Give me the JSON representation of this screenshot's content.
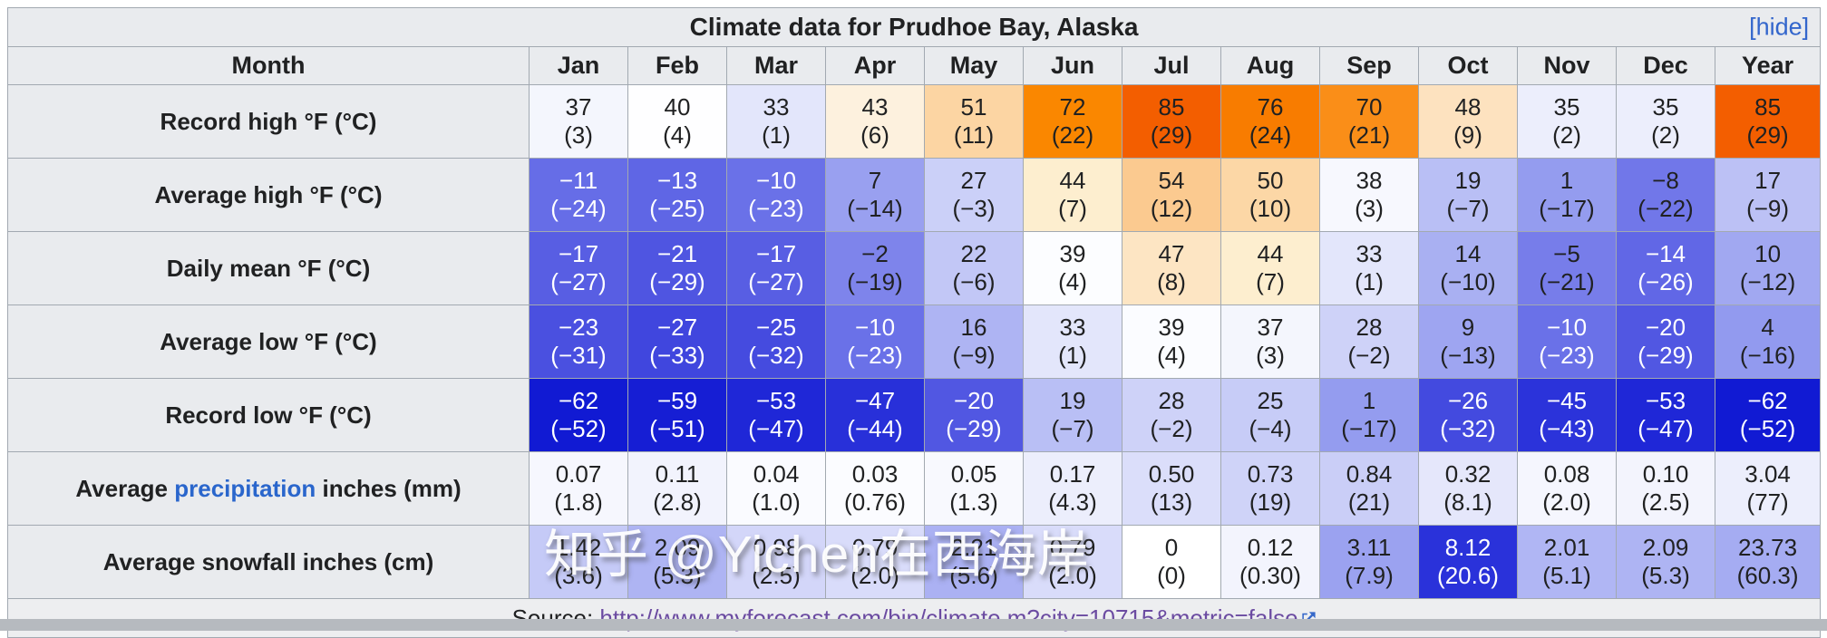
{
  "title": {
    "text": "Climate data for Prudhoe Bay, Alaska",
    "hide_label": "[hide]"
  },
  "header": {
    "month_label": "Month",
    "columns": [
      "Jan",
      "Feb",
      "Mar",
      "Apr",
      "May",
      "Jun",
      "Jul",
      "Aug",
      "Sep",
      "Oct",
      "Nov",
      "Dec",
      "Year"
    ]
  },
  "rows": [
    {
      "label": "Record high °F (°C)",
      "cells": [
        {
          "v": "37",
          "m": "(3)",
          "bg": "#F4F6FD"
        },
        {
          "v": "40",
          "m": "(4)",
          "bg": "#FEFEFF"
        },
        {
          "v": "33",
          "m": "(1)",
          "bg": "#E3E6FB"
        },
        {
          "v": "43",
          "m": "(6)",
          "bg": "#FDF1DE"
        },
        {
          "v": "51",
          "m": "(11)",
          "bg": "#FCD5A3"
        },
        {
          "v": "72",
          "m": "(22)",
          "bg": "#FA8700"
        },
        {
          "v": "85",
          "m": "(29)",
          "bg": "#F35E00"
        },
        {
          "v": "76",
          "m": "(24)",
          "bg": "#F87C00"
        },
        {
          "v": "70",
          "m": "(21)",
          "bg": "#FA8E18"
        },
        {
          "v": "48",
          "m": "(9)",
          "bg": "#FDE2BF"
        },
        {
          "v": "35",
          "m": "(2)",
          "bg": "#ECEEFC"
        },
        {
          "v": "35",
          "m": "(2)",
          "bg": "#ECEEFC"
        },
        {
          "v": "85",
          "m": "(29)",
          "bg": "#F35E00"
        }
      ]
    },
    {
      "label": "Average high °F (°C)",
      "cells": [
        {
          "v": "−11",
          "m": "(−24)",
          "bg": "#666DE7",
          "w": true
        },
        {
          "v": "−13",
          "m": "(−25)",
          "bg": "#5F66E5",
          "w": true
        },
        {
          "v": "−10",
          "m": "(−23)",
          "bg": "#6A71E8",
          "w": true
        },
        {
          "v": "7",
          "m": "(−14)",
          "bg": "#99A0F0"
        },
        {
          "v": "27",
          "m": "(−3)",
          "bg": "#CBD0F8"
        },
        {
          "v": "44",
          "m": "(7)",
          "bg": "#FDEECF"
        },
        {
          "v": "54",
          "m": "(12)",
          "bg": "#FBCA90"
        },
        {
          "v": "50",
          "m": "(10)",
          "bg": "#FCD7A6"
        },
        {
          "v": "38",
          "m": "(3)",
          "bg": "#F7F8FE"
        },
        {
          "v": "19",
          "m": "(−7)",
          "bg": "#B9BFF5"
        },
        {
          "v": "1",
          "m": "(−17)",
          "bg": "#949CEF"
        },
        {
          "v": "−8",
          "m": "(−22)",
          "bg": "#7177E9"
        },
        {
          "v": "17",
          "m": "(−9)",
          "bg": "#BCC1F5"
        }
      ]
    },
    {
      "label": "Daily mean °F (°C)",
      "cells": [
        {
          "v": "−17",
          "m": "(−27)",
          "bg": "#585EE3",
          "w": true
        },
        {
          "v": "−21",
          "m": "(−29)",
          "bg": "#4F55E1",
          "w": true
        },
        {
          "v": "−17",
          "m": "(−27)",
          "bg": "#585EE3",
          "w": true
        },
        {
          "v": "−2",
          "m": "(−19)",
          "bg": "#7E84EB"
        },
        {
          "v": "22",
          "m": "(−6)",
          "bg": "#C2C7F6"
        },
        {
          "v": "39",
          "m": "(4)",
          "bg": "#FCFDFF"
        },
        {
          "v": "47",
          "m": "(8)",
          "bg": "#FDE5C3"
        },
        {
          "v": "44",
          "m": "(7)",
          "bg": "#FDEECF"
        },
        {
          "v": "33",
          "m": "(1)",
          "bg": "#E3E6FB"
        },
        {
          "v": "14",
          "m": "(−10)",
          "bg": "#A9B0F2"
        },
        {
          "v": "−5",
          "m": "(−21)",
          "bg": "#777DEA"
        },
        {
          "v": "−14",
          "m": "(−26)",
          "bg": "#6167E6",
          "w": true
        },
        {
          "v": "10",
          "m": "(−12)",
          "bg": "#A1A8F1"
        }
      ]
    },
    {
      "label": "Average low °F (°C)",
      "cells": [
        {
          "v": "−23",
          "m": "(−31)",
          "bg": "#4A50E0",
          "w": true
        },
        {
          "v": "−27",
          "m": "(−33)",
          "bg": "#4046DE",
          "w": true
        },
        {
          "v": "−25",
          "m": "(−32)",
          "bg": "#454BDF",
          "w": true
        },
        {
          "v": "−10",
          "m": "(−23)",
          "bg": "#6A71E8",
          "w": true
        },
        {
          "v": "16",
          "m": "(−9)",
          "bg": "#AEB4F3"
        },
        {
          "v": "33",
          "m": "(1)",
          "bg": "#E3E6FB"
        },
        {
          "v": "39",
          "m": "(4)",
          "bg": "#FBFCFF"
        },
        {
          "v": "37",
          "m": "(3)",
          "bg": "#F4F6FD"
        },
        {
          "v": "28",
          "m": "(−2)",
          "bg": "#CED2F8"
        },
        {
          "v": "9",
          "m": "(−13)",
          "bg": "#9EA5F1"
        },
        {
          "v": "−10",
          "m": "(−23)",
          "bg": "#6A71E8",
          "w": true
        },
        {
          "v": "−20",
          "m": "(−29)",
          "bg": "#5157E2",
          "w": true
        },
        {
          "v": "4",
          "m": "(−16)",
          "bg": "#929AEF"
        }
      ]
    },
    {
      "label": "Record low °F (°C)",
      "cells": [
        {
          "v": "−62",
          "m": "(−52)",
          "bg": "#111AD3",
          "w": true
        },
        {
          "v": "−59",
          "m": "(−51)",
          "bg": "#161ED4",
          "w": true
        },
        {
          "v": "−53",
          "m": "(−47)",
          "bg": "#1F27D7",
          "w": true
        },
        {
          "v": "−47",
          "m": "(−44)",
          "bg": "#2830D9",
          "w": true
        },
        {
          "v": "−20",
          "m": "(−29)",
          "bg": "#5157E2",
          "w": true
        },
        {
          "v": "19",
          "m": "(−7)",
          "bg": "#B9BFF5"
        },
        {
          "v": "28",
          "m": "(−2)",
          "bg": "#CED2F8"
        },
        {
          "v": "25",
          "m": "(−4)",
          "bg": "#C7CCF7"
        },
        {
          "v": "1",
          "m": "(−17)",
          "bg": "#949CEF"
        },
        {
          "v": "−26",
          "m": "(−32)",
          "bg": "#434ADF",
          "w": true
        },
        {
          "v": "−45",
          "m": "(−43)",
          "bg": "#2B33DA",
          "w": true
        },
        {
          "v": "−53",
          "m": "(−47)",
          "bg": "#1F27D7",
          "w": true
        },
        {
          "v": "−62",
          "m": "(−52)",
          "bg": "#111AD3",
          "w": true
        }
      ]
    },
    {
      "label_pre": "Average ",
      "label_link": "precipitation",
      "label_post": " inches (mm)",
      "cells": [
        {
          "v": "0.07",
          "m": "(1.8)",
          "bg": "#F6F7FE"
        },
        {
          "v": "0.11",
          "m": "(2.8)",
          "bg": "#F2F3FD"
        },
        {
          "v": "0.04",
          "m": "(1.0)",
          "bg": "#FAFBFF"
        },
        {
          "v": "0.03",
          "m": "(0.76)",
          "bg": "#FBFCFF"
        },
        {
          "v": "0.05",
          "m": "(1.3)",
          "bg": "#F8F9FE"
        },
        {
          "v": "0.17",
          "m": "(4.3)",
          "bg": "#ECEEFC"
        },
        {
          "v": "0.50",
          "m": "(13)",
          "bg": "#DBDEFA"
        },
        {
          "v": "0.73",
          "m": "(19)",
          "bg": "#CFD3F8"
        },
        {
          "v": "0.84",
          "m": "(21)",
          "bg": "#CACEF7"
        },
        {
          "v": "0.32",
          "m": "(8.1)",
          "bg": "#E5E7FB"
        },
        {
          "v": "0.08",
          "m": "(2.0)",
          "bg": "#F5F6FE"
        },
        {
          "v": "0.10",
          "m": "(2.5)",
          "bg": "#F3F4FD"
        },
        {
          "v": "3.04",
          "m": "(77)",
          "bg": "#ECEEFC"
        }
      ]
    },
    {
      "label": "Average snowfall inches (cm)",
      "cells": [
        {
          "v": "1.42",
          "m": "(3.6)",
          "bg": "#C5CAF7"
        },
        {
          "v": "2.09",
          "m": "(5.3)",
          "bg": "#AEB4F3"
        },
        {
          "v": "0.98",
          "m": "(2.5)",
          "bg": "#D3D6F9"
        },
        {
          "v": "0.79",
          "m": "(2.0)",
          "bg": "#D9DCFA"
        },
        {
          "v": "2.21",
          "m": "(5.6)",
          "bg": "#ABB1F3"
        },
        {
          "v": "0.79",
          "m": "(2.0)",
          "bg": "#D9DCFA"
        },
        {
          "v": "0",
          "m": "(0)",
          "bg": "#FFFFFF"
        },
        {
          "v": "0.12",
          "m": "(0.30)",
          "bg": "#F3F4FD"
        },
        {
          "v": "3.11",
          "m": "(7.9)",
          "bg": "#9BA2F0"
        },
        {
          "v": "8.12",
          "m": "(20.6)",
          "bg": "#2A32DA",
          "w": true
        },
        {
          "v": "2.01",
          "m": "(5.1)",
          "bg": "#B0B6F4"
        },
        {
          "v": "2.09",
          "m": "(5.3)",
          "bg": "#AEB4F3"
        },
        {
          "v": "23.73",
          "m": "(60.3)",
          "bg": "#A5ACF2"
        }
      ]
    }
  ],
  "source": {
    "prefix": "Source: ",
    "link_text": "http://www.myforecast.com/bin/climate.m?city=10715&metric=false"
  },
  "watermark": {
    "text": "知乎 @Yichen在西海岸"
  },
  "colors": {
    "header_bg": "#E9EBEE",
    "border": "#A2A9B1",
    "hide_link": "#3366CC",
    "precipitation_link": "#2A66CC",
    "source_link": "#6B4BA1",
    "hot_max": "#F35E00",
    "cold_max": "#111AD3"
  },
  "chart_data": {
    "type": "table",
    "title": "Climate data for Prudhoe Bay, Alaska",
    "categories": [
      "Jan",
      "Feb",
      "Mar",
      "Apr",
      "May",
      "Jun",
      "Jul",
      "Aug",
      "Sep",
      "Oct",
      "Nov",
      "Dec",
      "Year"
    ],
    "series": [
      {
        "name": "Record high °F",
        "values": [
          37,
          40,
          33,
          43,
          51,
          72,
          85,
          76,
          70,
          48,
          35,
          35,
          85
        ]
      },
      {
        "name": "Record high °C",
        "values": [
          3,
          4,
          1,
          6,
          11,
          22,
          29,
          24,
          21,
          9,
          2,
          2,
          29
        ]
      },
      {
        "name": "Average high °F",
        "values": [
          -11,
          -13,
          -10,
          7,
          27,
          44,
          54,
          50,
          38,
          19,
          1,
          -8,
          17
        ]
      },
      {
        "name": "Average high °C",
        "values": [
          -24,
          -25,
          -23,
          -14,
          -3,
          7,
          12,
          10,
          3,
          -7,
          -17,
          -22,
          -9
        ]
      },
      {
        "name": "Daily mean °F",
        "values": [
          -17,
          -21,
          -17,
          -2,
          22,
          39,
          47,
          44,
          33,
          14,
          -5,
          -14,
          10
        ]
      },
      {
        "name": "Daily mean °C",
        "values": [
          -27,
          -29,
          -27,
          -19,
          -6,
          4,
          8,
          7,
          1,
          -10,
          -21,
          -26,
          -12
        ]
      },
      {
        "name": "Average low °F",
        "values": [
          -23,
          -27,
          -25,
          -10,
          16,
          33,
          39,
          37,
          28,
          9,
          -10,
          -20,
          4
        ]
      },
      {
        "name": "Average low °C",
        "values": [
          -31,
          -33,
          -32,
          -23,
          -9,
          1,
          4,
          3,
          -2,
          -13,
          -23,
          -29,
          -16
        ]
      },
      {
        "name": "Record low °F",
        "values": [
          -62,
          -59,
          -53,
          -47,
          -20,
          19,
          28,
          25,
          1,
          -26,
          -45,
          -53,
          -62
        ]
      },
      {
        "name": "Record low °C",
        "values": [
          -52,
          -51,
          -47,
          -44,
          -29,
          -7,
          -2,
          -4,
          -17,
          -32,
          -43,
          -47,
          -52
        ]
      },
      {
        "name": "Average precipitation inches",
        "values": [
          0.07,
          0.11,
          0.04,
          0.03,
          0.05,
          0.17,
          0.5,
          0.73,
          0.84,
          0.32,
          0.08,
          0.1,
          3.04
        ]
      },
      {
        "name": "Average precipitation mm",
        "values": [
          1.8,
          2.8,
          1.0,
          0.76,
          1.3,
          4.3,
          13,
          19,
          21,
          8.1,
          2.0,
          2.5,
          77
        ]
      },
      {
        "name": "Average snowfall inches",
        "values": [
          1.42,
          2.09,
          0.98,
          0.79,
          2.21,
          0.79,
          0,
          0.12,
          3.11,
          8.12,
          2.01,
          2.09,
          23.73
        ]
      },
      {
        "name": "Average snowfall cm",
        "values": [
          3.6,
          5.3,
          2.5,
          2.0,
          5.6,
          2.0,
          0,
          0.3,
          7.9,
          20.6,
          5.1,
          5.3,
          60.3
        ]
      }
    ]
  }
}
